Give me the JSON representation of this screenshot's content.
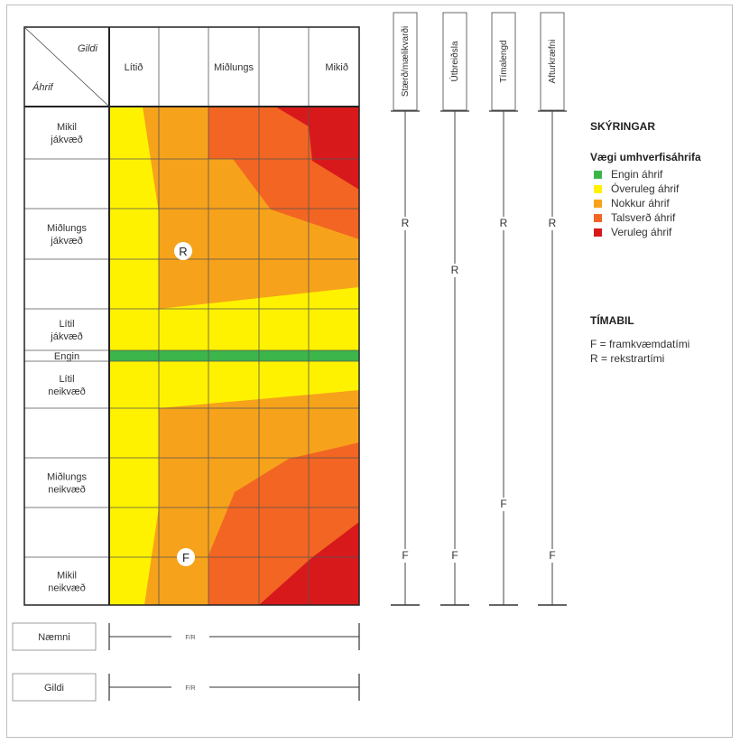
{
  "header": {
    "corner_gildi": "Gildi",
    "corner_ahrif": "Áhrif"
  },
  "columns": [
    "Lítið",
    "",
    "Miðlungs",
    "",
    "Mikið"
  ],
  "rows": [
    {
      "label": "Mikil\njákvæð"
    },
    {
      "label": ""
    },
    {
      "label": "Miðlungs\njákvæð"
    },
    {
      "label": ""
    },
    {
      "label": "Lítil\njákvæð"
    },
    {
      "label": "Engin"
    },
    {
      "label": "Lítil\nneikvæð"
    },
    {
      "label": ""
    },
    {
      "label": "Miðlungs\nneikvæð"
    },
    {
      "label": ""
    },
    {
      "label": "Mikil\nneikvæð"
    }
  ],
  "markers": {
    "positive": "R",
    "negative": "F"
  },
  "scales": [
    {
      "title": "Stærð/mælikvarði",
      "top_marker": "R",
      "bottom_marker": "F"
    },
    {
      "title": "Útbreiðsla",
      "top_marker": "R",
      "bottom_marker": "F"
    },
    {
      "title": "Tímalengd",
      "top_marker": "R",
      "bottom_marker": "F"
    },
    {
      "title": "Afturkræfni",
      "top_marker": "R",
      "bottom_marker": "F"
    }
  ],
  "bottom_scales": [
    {
      "label": "Næmni",
      "mid": "F/R"
    },
    {
      "label": "Gildi",
      "mid": "F/R"
    }
  ],
  "legend": {
    "title": "SKÝRINGAR",
    "subtitle": "Vægi umhverfisáhrifa",
    "items": [
      {
        "label": "Engin áhrif",
        "color": "#3cb54a"
      },
      {
        "label": "Óveruleg áhrif",
        "color": "#fff200"
      },
      {
        "label": "Nokkur áhrif",
        "color": "#f7a21b"
      },
      {
        "label": "Talsverð áhrif",
        "color": "#f26522"
      },
      {
        "label": "Veruleg áhrif",
        "color": "#d7191c"
      }
    ],
    "period_title": "TÍMABIL",
    "periods": [
      "F = framkvæmdatími",
      "R = rekstrartími"
    ]
  },
  "colors": {
    "engin": "#3cb54a",
    "overuleg": "#fff200",
    "nokkur": "#f7a21b",
    "talsverd": "#f26522",
    "veruleg": "#d7191c"
  }
}
